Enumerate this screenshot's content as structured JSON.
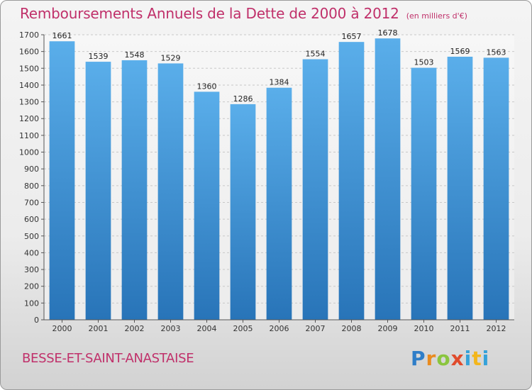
{
  "title": "Remboursements Annuels de la Dette de 2000 à 2012",
  "unit_label": "(en milliers d'€)",
  "location": "BESSE-ET-SAINT-ANASTAISE",
  "brand": {
    "letters": [
      "P",
      "r",
      "o",
      "x",
      "i",
      "t",
      "i"
    ],
    "colors": [
      "#2f7ec8",
      "#e98b1f",
      "#8ac53e",
      "#e04b2c",
      "#35a2d9",
      "#f3b61c",
      "#35a2d9"
    ]
  },
  "chart_data": {
    "type": "bar",
    "title": "Remboursements Annuels de la Dette de 2000 à 2012",
    "xlabel": "",
    "ylabel": "",
    "categories": [
      "2000",
      "2001",
      "2002",
      "2003",
      "2004",
      "2005",
      "2006",
      "2007",
      "2008",
      "2009",
      "2010",
      "2011",
      "2012"
    ],
    "values": [
      1661,
      1539,
      1548,
      1529,
      1360,
      1286,
      1384,
      1554,
      1657,
      1678,
      1503,
      1569,
      1563
    ],
    "ylim": [
      0,
      1700
    ],
    "yticks": [
      0,
      100,
      200,
      300,
      400,
      500,
      600,
      700,
      800,
      900,
      1000,
      1100,
      1200,
      1300,
      1400,
      1500,
      1600,
      1700
    ],
    "grid": true,
    "bar_color": "#3d8fd4"
  }
}
